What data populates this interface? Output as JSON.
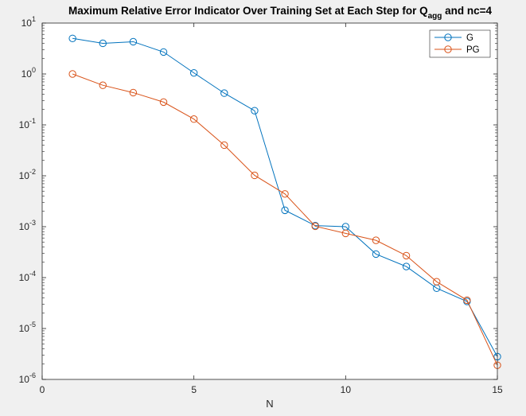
{
  "chart_data": {
    "type": "line",
    "title": {
      "main": "Maximum Relative Error Indicator Over Training Set at Each Step for Q",
      "subscript": "agg",
      "suffix": " and nc=4"
    },
    "xlabel": "N",
    "ylabel": "",
    "xlim": [
      0,
      15
    ],
    "ylim": [
      1e-06,
      10
    ],
    "yscale": "log",
    "grid": false,
    "legend_placement": "top-right",
    "x_ticks": [
      0,
      5,
      10,
      15
    ],
    "x_tick_labels": [
      "0",
      "5",
      "10",
      "15"
    ],
    "y_tick_exponents": [
      1,
      0,
      -1,
      -2,
      -3,
      -4,
      -5,
      -6
    ],
    "y_tick_base": "10",
    "y_tick_exponent_labels": [
      "1",
      "0",
      "-1",
      "-2",
      "-3",
      "-4",
      "-5",
      "-6"
    ],
    "x": [
      1,
      2,
      3,
      4,
      5,
      6,
      7,
      8,
      9,
      10,
      11,
      12,
      13,
      14,
      15
    ],
    "series": [
      {
        "name": "G",
        "color": "#0072bd",
        "values": [
          5.0,
          4.0,
          4.3,
          2.7,
          1.05,
          0.42,
          0.19,
          0.0021,
          0.00105,
          0.001,
          0.00029,
          0.000165,
          6.2e-05,
          3.4e-05,
          2.8e-06
        ]
      },
      {
        "name": "PG",
        "color": "#d95319",
        "values": [
          1.0,
          0.6,
          0.43,
          0.28,
          0.13,
          0.04,
          0.0102,
          0.0044,
          0.00102,
          0.00074,
          0.00054,
          0.00027,
          8.3e-05,
          3.6e-05,
          1.9e-06
        ]
      }
    ]
  }
}
